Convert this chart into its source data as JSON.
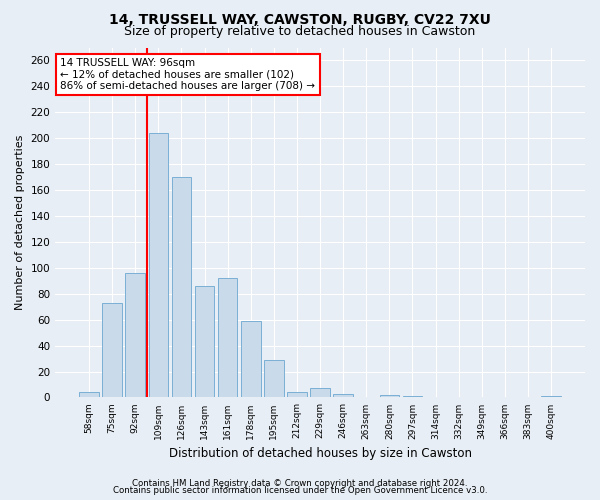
{
  "title1": "14, TRUSSELL WAY, CAWSTON, RUGBY, CV22 7XU",
  "title2": "Size of property relative to detached houses in Cawston",
  "xlabel": "Distribution of detached houses by size in Cawston",
  "ylabel": "Number of detached properties",
  "footer1": "Contains HM Land Registry data © Crown copyright and database right 2024.",
  "footer2": "Contains public sector information licensed under the Open Government Licence v3.0.",
  "bin_labels": [
    "58sqm",
    "75sqm",
    "92sqm",
    "109sqm",
    "126sqm",
    "143sqm",
    "161sqm",
    "178sqm",
    "195sqm",
    "212sqm",
    "229sqm",
    "246sqm",
    "263sqm",
    "280sqm",
    "297sqm",
    "314sqm",
    "332sqm",
    "349sqm",
    "366sqm",
    "383sqm",
    "400sqm"
  ],
  "bar_values": [
    4,
    73,
    96,
    204,
    170,
    86,
    92,
    59,
    29,
    4,
    7,
    3,
    0,
    2,
    1,
    0,
    0,
    0,
    0,
    0,
    1
  ],
  "bar_color": "#c9daea",
  "bar_edge_color": "#7aafd4",
  "red_line_x": 2.5,
  "annotation_box": {
    "text_line1": "14 TRUSSELL WAY: 96sqm",
    "text_line2": "← 12% of detached houses are smaller (102)",
    "text_line3": "86% of semi-detached houses are larger (708) →"
  },
  "ylim": [
    0,
    270
  ],
  "yticks": [
    0,
    20,
    40,
    60,
    80,
    100,
    120,
    140,
    160,
    180,
    200,
    220,
    240,
    260
  ],
  "background_color": "#e8eef5",
  "plot_bg_color": "#e8eef5",
  "grid_color": "#ffffff",
  "title1_fontsize": 10,
  "title2_fontsize": 9,
  "xlabel_fontsize": 8.5,
  "ylabel_fontsize": 8,
  "ann_fontsize": 7.5,
  "footer_fontsize": 6.2
}
